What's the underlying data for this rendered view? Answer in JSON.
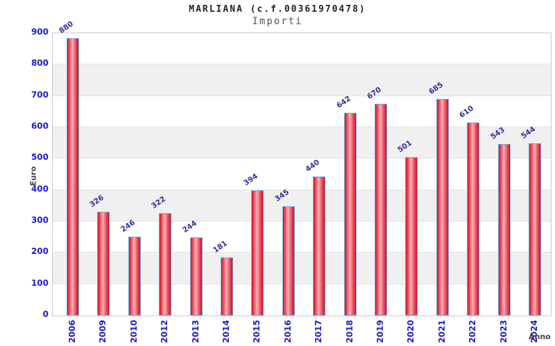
{
  "chart_data": {
    "type": "bar",
    "title": "MARLIANA (c.f.00361970478)",
    "subtitle": "Importi",
    "xlabel": "Anno",
    "ylabel": "Euro",
    "categories": [
      "2006",
      "2009",
      "2010",
      "2012",
      "2013",
      "2014",
      "2015",
      "2016",
      "2017",
      "2018",
      "2019",
      "2020",
      "2021",
      "2022",
      "2023",
      "2024"
    ],
    "values": [
      880,
      326,
      246,
      322,
      244,
      181,
      394,
      345,
      440,
      642,
      670,
      501,
      685,
      610,
      543,
      544
    ],
    "ylim": [
      0,
      900
    ],
    "ytick_step": 100,
    "grid": "alternating-bands",
    "legend": "none",
    "colors": {
      "tick_label": "#2020cc",
      "value_label": "#30309c",
      "title_text": "#222222",
      "subtitle_text": "#555555",
      "axis_title_text": "#444444",
      "band_gray": "#f0f0f0",
      "band_white": "#ffffff",
      "gridline": "#e2e2e2",
      "plot_border": "#c9c9d6",
      "bar_border": "#74aadf",
      "bar_edge": "#d01020",
      "bar_mid": "#ee5868",
      "bar_highlight": "#f6b3b6"
    }
  }
}
